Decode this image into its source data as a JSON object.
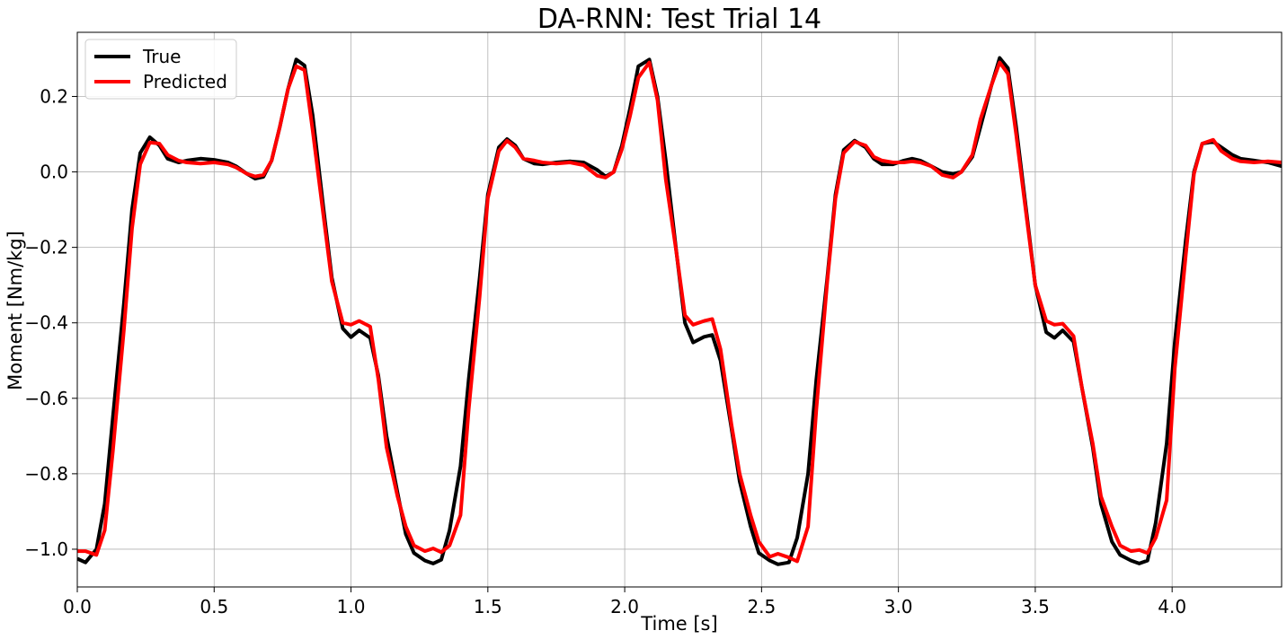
{
  "chart_data": {
    "type": "line",
    "title": "DA-RNN: Test Trial 14",
    "xlabel": "Time [s]",
    "ylabel": "Moment [Nm/kg]",
    "xlim": [
      0.0,
      4.4
    ],
    "ylim": [
      -1.1,
      0.37
    ],
    "xticks": [
      0.0,
      0.5,
      1.0,
      1.5,
      2.0,
      2.5,
      3.0,
      3.5,
      4.0
    ],
    "xtick_labels": [
      "0.0",
      "0.5",
      "1.0",
      "1.5",
      "2.0",
      "2.5",
      "3.0",
      "3.5",
      "4.0"
    ],
    "yticks": [
      -1.0,
      -0.8,
      -0.6,
      -0.4,
      -0.2,
      0.0,
      0.2
    ],
    "ytick_labels": [
      "−1.0",
      "−0.8",
      "−0.6",
      "−0.4",
      "−0.2",
      "0.0",
      "0.2"
    ],
    "grid": true,
    "legend_position": "top-left",
    "series": [
      {
        "name": "True",
        "color": "#000000",
        "points": [
          [
            0.0,
            -1.025
          ],
          [
            0.03,
            -1.035
          ],
          [
            0.07,
            -1.0
          ],
          [
            0.1,
            -0.88
          ],
          [
            0.13,
            -0.65
          ],
          [
            0.17,
            -0.35
          ],
          [
            0.2,
            -0.1
          ],
          [
            0.23,
            0.05
          ],
          [
            0.265,
            0.092
          ],
          [
            0.3,
            0.07
          ],
          [
            0.33,
            0.035
          ],
          [
            0.37,
            0.025
          ],
          [
            0.4,
            0.03
          ],
          [
            0.45,
            0.035
          ],
          [
            0.5,
            0.032
          ],
          [
            0.55,
            0.025
          ],
          [
            0.58,
            0.015
          ],
          [
            0.62,
            -0.005
          ],
          [
            0.65,
            -0.018
          ],
          [
            0.68,
            -0.013
          ],
          [
            0.71,
            0.03
          ],
          [
            0.74,
            0.12
          ],
          [
            0.77,
            0.22
          ],
          [
            0.8,
            0.298
          ],
          [
            0.83,
            0.282
          ],
          [
            0.86,
            0.15
          ],
          [
            0.9,
            -0.1
          ],
          [
            0.93,
            -0.28
          ],
          [
            0.97,
            -0.415
          ],
          [
            1.0,
            -0.438
          ],
          [
            1.03,
            -0.42
          ],
          [
            1.07,
            -0.44
          ],
          [
            1.1,
            -0.54
          ],
          [
            1.13,
            -0.7
          ],
          [
            1.17,
            -0.85
          ],
          [
            1.2,
            -0.96
          ],
          [
            1.23,
            -1.01
          ],
          [
            1.27,
            -1.03
          ],
          [
            1.3,
            -1.038
          ],
          [
            1.33,
            -1.028
          ],
          [
            1.36,
            -0.95
          ],
          [
            1.4,
            -0.78
          ],
          [
            1.43,
            -0.55
          ],
          [
            1.47,
            -0.28
          ],
          [
            1.5,
            -0.06
          ],
          [
            1.54,
            0.065
          ],
          [
            1.57,
            0.087
          ],
          [
            1.6,
            0.07
          ],
          [
            1.63,
            0.035
          ],
          [
            1.67,
            0.022
          ],
          [
            1.7,
            0.02
          ],
          [
            1.75,
            0.025
          ],
          [
            1.8,
            0.028
          ],
          [
            1.85,
            0.025
          ],
          [
            1.9,
            0.005
          ],
          [
            1.93,
            -0.012
          ],
          [
            1.96,
            0.0
          ],
          [
            1.99,
            0.07
          ],
          [
            2.02,
            0.17
          ],
          [
            2.05,
            0.28
          ],
          [
            2.09,
            0.298
          ],
          [
            2.12,
            0.2
          ],
          [
            2.15,
            0.03
          ],
          [
            2.19,
            -0.22
          ],
          [
            2.22,
            -0.4
          ],
          [
            2.25,
            -0.452
          ],
          [
            2.29,
            -0.437
          ],
          [
            2.32,
            -0.432
          ],
          [
            2.35,
            -0.5
          ],
          [
            2.39,
            -0.68
          ],
          [
            2.42,
            -0.82
          ],
          [
            2.46,
            -0.94
          ],
          [
            2.49,
            -1.01
          ],
          [
            2.53,
            -1.03
          ],
          [
            2.56,
            -1.04
          ],
          [
            2.6,
            -1.035
          ],
          [
            2.63,
            -0.97
          ],
          [
            2.67,
            -0.8
          ],
          [
            2.7,
            -0.55
          ],
          [
            2.74,
            -0.28
          ],
          [
            2.77,
            -0.06
          ],
          [
            2.8,
            0.058
          ],
          [
            2.84,
            0.083
          ],
          [
            2.88,
            0.065
          ],
          [
            2.91,
            0.035
          ],
          [
            2.94,
            0.02
          ],
          [
            2.98,
            0.02
          ],
          [
            3.02,
            0.03
          ],
          [
            3.05,
            0.035
          ],
          [
            3.08,
            0.03
          ],
          [
            3.12,
            0.015
          ],
          [
            3.16,
            0.0
          ],
          [
            3.2,
            -0.005
          ],
          [
            3.23,
            0.0
          ],
          [
            3.27,
            0.04
          ],
          [
            3.3,
            0.12
          ],
          [
            3.34,
            0.23
          ],
          [
            3.37,
            0.302
          ],
          [
            3.4,
            0.275
          ],
          [
            3.43,
            0.12
          ],
          [
            3.47,
            -0.12
          ],
          [
            3.5,
            -0.3
          ],
          [
            3.54,
            -0.425
          ],
          [
            3.57,
            -0.44
          ],
          [
            3.6,
            -0.42
          ],
          [
            3.64,
            -0.45
          ],
          [
            3.67,
            -0.57
          ],
          [
            3.71,
            -0.73
          ],
          [
            3.74,
            -0.88
          ],
          [
            3.78,
            -0.98
          ],
          [
            3.81,
            -1.015
          ],
          [
            3.85,
            -1.03
          ],
          [
            3.88,
            -1.038
          ],
          [
            3.91,
            -1.03
          ],
          [
            3.94,
            -0.93
          ],
          [
            3.98,
            -0.72
          ],
          [
            4.01,
            -0.45
          ],
          [
            4.05,
            -0.18
          ],
          [
            4.08,
            0.0
          ],
          [
            4.11,
            0.075
          ],
          [
            4.15,
            0.08
          ],
          [
            4.18,
            0.065
          ],
          [
            4.22,
            0.045
          ],
          [
            4.25,
            0.035
          ],
          [
            4.3,
            0.03
          ],
          [
            4.35,
            0.025
          ],
          [
            4.4,
            0.015
          ]
        ]
      },
      {
        "name": "Predicted",
        "color": "#ff0000",
        "points": [
          [
            0.0,
            -1.005
          ],
          [
            0.03,
            -1.005
          ],
          [
            0.07,
            -1.015
          ],
          [
            0.1,
            -0.95
          ],
          [
            0.13,
            -0.74
          ],
          [
            0.17,
            -0.42
          ],
          [
            0.2,
            -0.15
          ],
          [
            0.23,
            0.02
          ],
          [
            0.265,
            0.078
          ],
          [
            0.3,
            0.075
          ],
          [
            0.33,
            0.045
          ],
          [
            0.37,
            0.03
          ],
          [
            0.4,
            0.025
          ],
          [
            0.45,
            0.022
          ],
          [
            0.5,
            0.025
          ],
          [
            0.55,
            0.02
          ],
          [
            0.58,
            0.012
          ],
          [
            0.62,
            -0.005
          ],
          [
            0.65,
            -0.012
          ],
          [
            0.68,
            -0.008
          ],
          [
            0.71,
            0.03
          ],
          [
            0.74,
            0.12
          ],
          [
            0.77,
            0.22
          ],
          [
            0.8,
            0.28
          ],
          [
            0.83,
            0.27
          ],
          [
            0.86,
            0.11
          ],
          [
            0.9,
            -0.12
          ],
          [
            0.93,
            -0.29
          ],
          [
            0.97,
            -0.4
          ],
          [
            1.0,
            -0.405
          ],
          [
            1.03,
            -0.395
          ],
          [
            1.07,
            -0.41
          ],
          [
            1.1,
            -0.55
          ],
          [
            1.13,
            -0.73
          ],
          [
            1.17,
            -0.86
          ],
          [
            1.2,
            -0.94
          ],
          [
            1.23,
            -0.99
          ],
          [
            1.27,
            -1.005
          ],
          [
            1.3,
            -0.998
          ],
          [
            1.33,
            -1.008
          ],
          [
            1.36,
            -0.99
          ],
          [
            1.4,
            -0.91
          ],
          [
            1.43,
            -0.63
          ],
          [
            1.47,
            -0.33
          ],
          [
            1.5,
            -0.07
          ],
          [
            1.54,
            0.055
          ],
          [
            1.57,
            0.083
          ],
          [
            1.6,
            0.065
          ],
          [
            1.63,
            0.035
          ],
          [
            1.67,
            0.03
          ],
          [
            1.7,
            0.025
          ],
          [
            1.75,
            0.022
          ],
          [
            1.8,
            0.025
          ],
          [
            1.85,
            0.018
          ],
          [
            1.9,
            -0.01
          ],
          [
            1.93,
            -0.015
          ],
          [
            1.96,
            0.0
          ],
          [
            1.99,
            0.06
          ],
          [
            2.02,
            0.15
          ],
          [
            2.05,
            0.25
          ],
          [
            2.09,
            0.29
          ],
          [
            2.12,
            0.19
          ],
          [
            2.15,
            -0.02
          ],
          [
            2.19,
            -0.22
          ],
          [
            2.22,
            -0.38
          ],
          [
            2.25,
            -0.405
          ],
          [
            2.29,
            -0.395
          ],
          [
            2.32,
            -0.39
          ],
          [
            2.35,
            -0.47
          ],
          [
            2.39,
            -0.67
          ],
          [
            2.42,
            -0.8
          ],
          [
            2.46,
            -0.91
          ],
          [
            2.49,
            -0.98
          ],
          [
            2.53,
            -1.02
          ],
          [
            2.56,
            -1.012
          ],
          [
            2.6,
            -1.022
          ],
          [
            2.63,
            -1.032
          ],
          [
            2.67,
            -0.94
          ],
          [
            2.7,
            -0.63
          ],
          [
            2.74,
            -0.29
          ],
          [
            2.77,
            -0.07
          ],
          [
            2.8,
            0.05
          ],
          [
            2.84,
            0.08
          ],
          [
            2.88,
            0.07
          ],
          [
            2.91,
            0.04
          ],
          [
            2.94,
            0.03
          ],
          [
            2.98,
            0.025
          ],
          [
            3.02,
            0.025
          ],
          [
            3.05,
            0.028
          ],
          [
            3.08,
            0.025
          ],
          [
            3.12,
            0.015
          ],
          [
            3.16,
            -0.008
          ],
          [
            3.2,
            -0.015
          ],
          [
            3.23,
            0.0
          ],
          [
            3.27,
            0.045
          ],
          [
            3.3,
            0.14
          ],
          [
            3.34,
            0.23
          ],
          [
            3.37,
            0.29
          ],
          [
            3.4,
            0.26
          ],
          [
            3.43,
            0.1
          ],
          [
            3.47,
            -0.13
          ],
          [
            3.5,
            -0.3
          ],
          [
            3.54,
            -0.395
          ],
          [
            3.57,
            -0.405
          ],
          [
            3.6,
            -0.402
          ],
          [
            3.64,
            -0.435
          ],
          [
            3.67,
            -0.57
          ],
          [
            3.71,
            -0.72
          ],
          [
            3.74,
            -0.86
          ],
          [
            3.78,
            -0.94
          ],
          [
            3.81,
            -0.99
          ],
          [
            3.85,
            -1.005
          ],
          [
            3.88,
            -1.002
          ],
          [
            3.91,
            -1.01
          ],
          [
            3.94,
            -0.97
          ],
          [
            3.98,
            -0.87
          ],
          [
            4.01,
            -0.52
          ],
          [
            4.05,
            -0.22
          ],
          [
            4.08,
            -0.005
          ],
          [
            4.11,
            0.075
          ],
          [
            4.15,
            0.085
          ],
          [
            4.18,
            0.055
          ],
          [
            4.22,
            0.035
          ],
          [
            4.25,
            0.028
          ],
          [
            4.3,
            0.025
          ],
          [
            4.35,
            0.028
          ],
          [
            4.4,
            0.025
          ]
        ]
      }
    ]
  }
}
